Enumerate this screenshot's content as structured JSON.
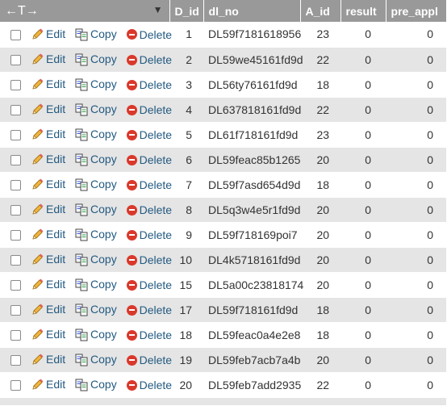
{
  "table": {
    "header": {
      "arrows": "←T→",
      "columns": [
        "D_id",
        "dl_no",
        "A_id",
        "result",
        "pre_appl"
      ]
    },
    "action_labels": {
      "edit": "Edit",
      "copy": "Copy",
      "delete": "Delete"
    },
    "rows": [
      {
        "d_id": "1",
        "dl_no": "DL59f7181618956",
        "a_id": "23",
        "result": "0",
        "pre_appl": "0"
      },
      {
        "d_id": "2",
        "dl_no": "DL59we45161fd9d",
        "a_id": "22",
        "result": "0",
        "pre_appl": "0"
      },
      {
        "d_id": "3",
        "dl_no": "DL56ty76161fd9d",
        "a_id": "18",
        "result": "0",
        "pre_appl": "0"
      },
      {
        "d_id": "4",
        "dl_no": "DL637818161fd9d",
        "a_id": "22",
        "result": "0",
        "pre_appl": "0"
      },
      {
        "d_id": "5",
        "dl_no": "DL61f718161fd9d",
        "a_id": "23",
        "result": "0",
        "pre_appl": "0"
      },
      {
        "d_id": "6",
        "dl_no": "DL59feac85b1265",
        "a_id": "20",
        "result": "0",
        "pre_appl": "0"
      },
      {
        "d_id": "7",
        "dl_no": "DL59f7asd654d9d",
        "a_id": "18",
        "result": "0",
        "pre_appl": "0"
      },
      {
        "d_id": "8",
        "dl_no": "DL5q3w4e5r1fd9d",
        "a_id": "20",
        "result": "0",
        "pre_appl": "0"
      },
      {
        "d_id": "9",
        "dl_no": "DL59f718169poi7",
        "a_id": "20",
        "result": "0",
        "pre_appl": "0"
      },
      {
        "d_id": "10",
        "dl_no": "DL4k5718161fd9d",
        "a_id": "20",
        "result": "0",
        "pre_appl": "0"
      },
      {
        "d_id": "15",
        "dl_no": "DL5a00c23818174",
        "a_id": "20",
        "result": "0",
        "pre_appl": "0"
      },
      {
        "d_id": "17",
        "dl_no": "DL59f718161fd9d",
        "a_id": "18",
        "result": "0",
        "pre_appl": "0"
      },
      {
        "d_id": "18",
        "dl_no": "DL59feac0a4e2e8",
        "a_id": "18",
        "result": "0",
        "pre_appl": "0"
      },
      {
        "d_id": "19",
        "dl_no": "DL59feb7acb7a4b",
        "a_id": "20",
        "result": "0",
        "pre_appl": "0"
      },
      {
        "d_id": "20",
        "dl_no": "DL59feb7add2935",
        "a_id": "22",
        "result": "0",
        "pre_appl": "0"
      }
    ]
  },
  "icons": {
    "sort": "triangle-down-icon",
    "edit": "pencil-icon",
    "copy": "copy-icon",
    "delete": "delete-icon"
  },
  "colors": {
    "header_bg": "#999999",
    "row_alt_bg": "#e5e5e5",
    "link": "#235a81",
    "delete_icon": "#d9382b"
  }
}
